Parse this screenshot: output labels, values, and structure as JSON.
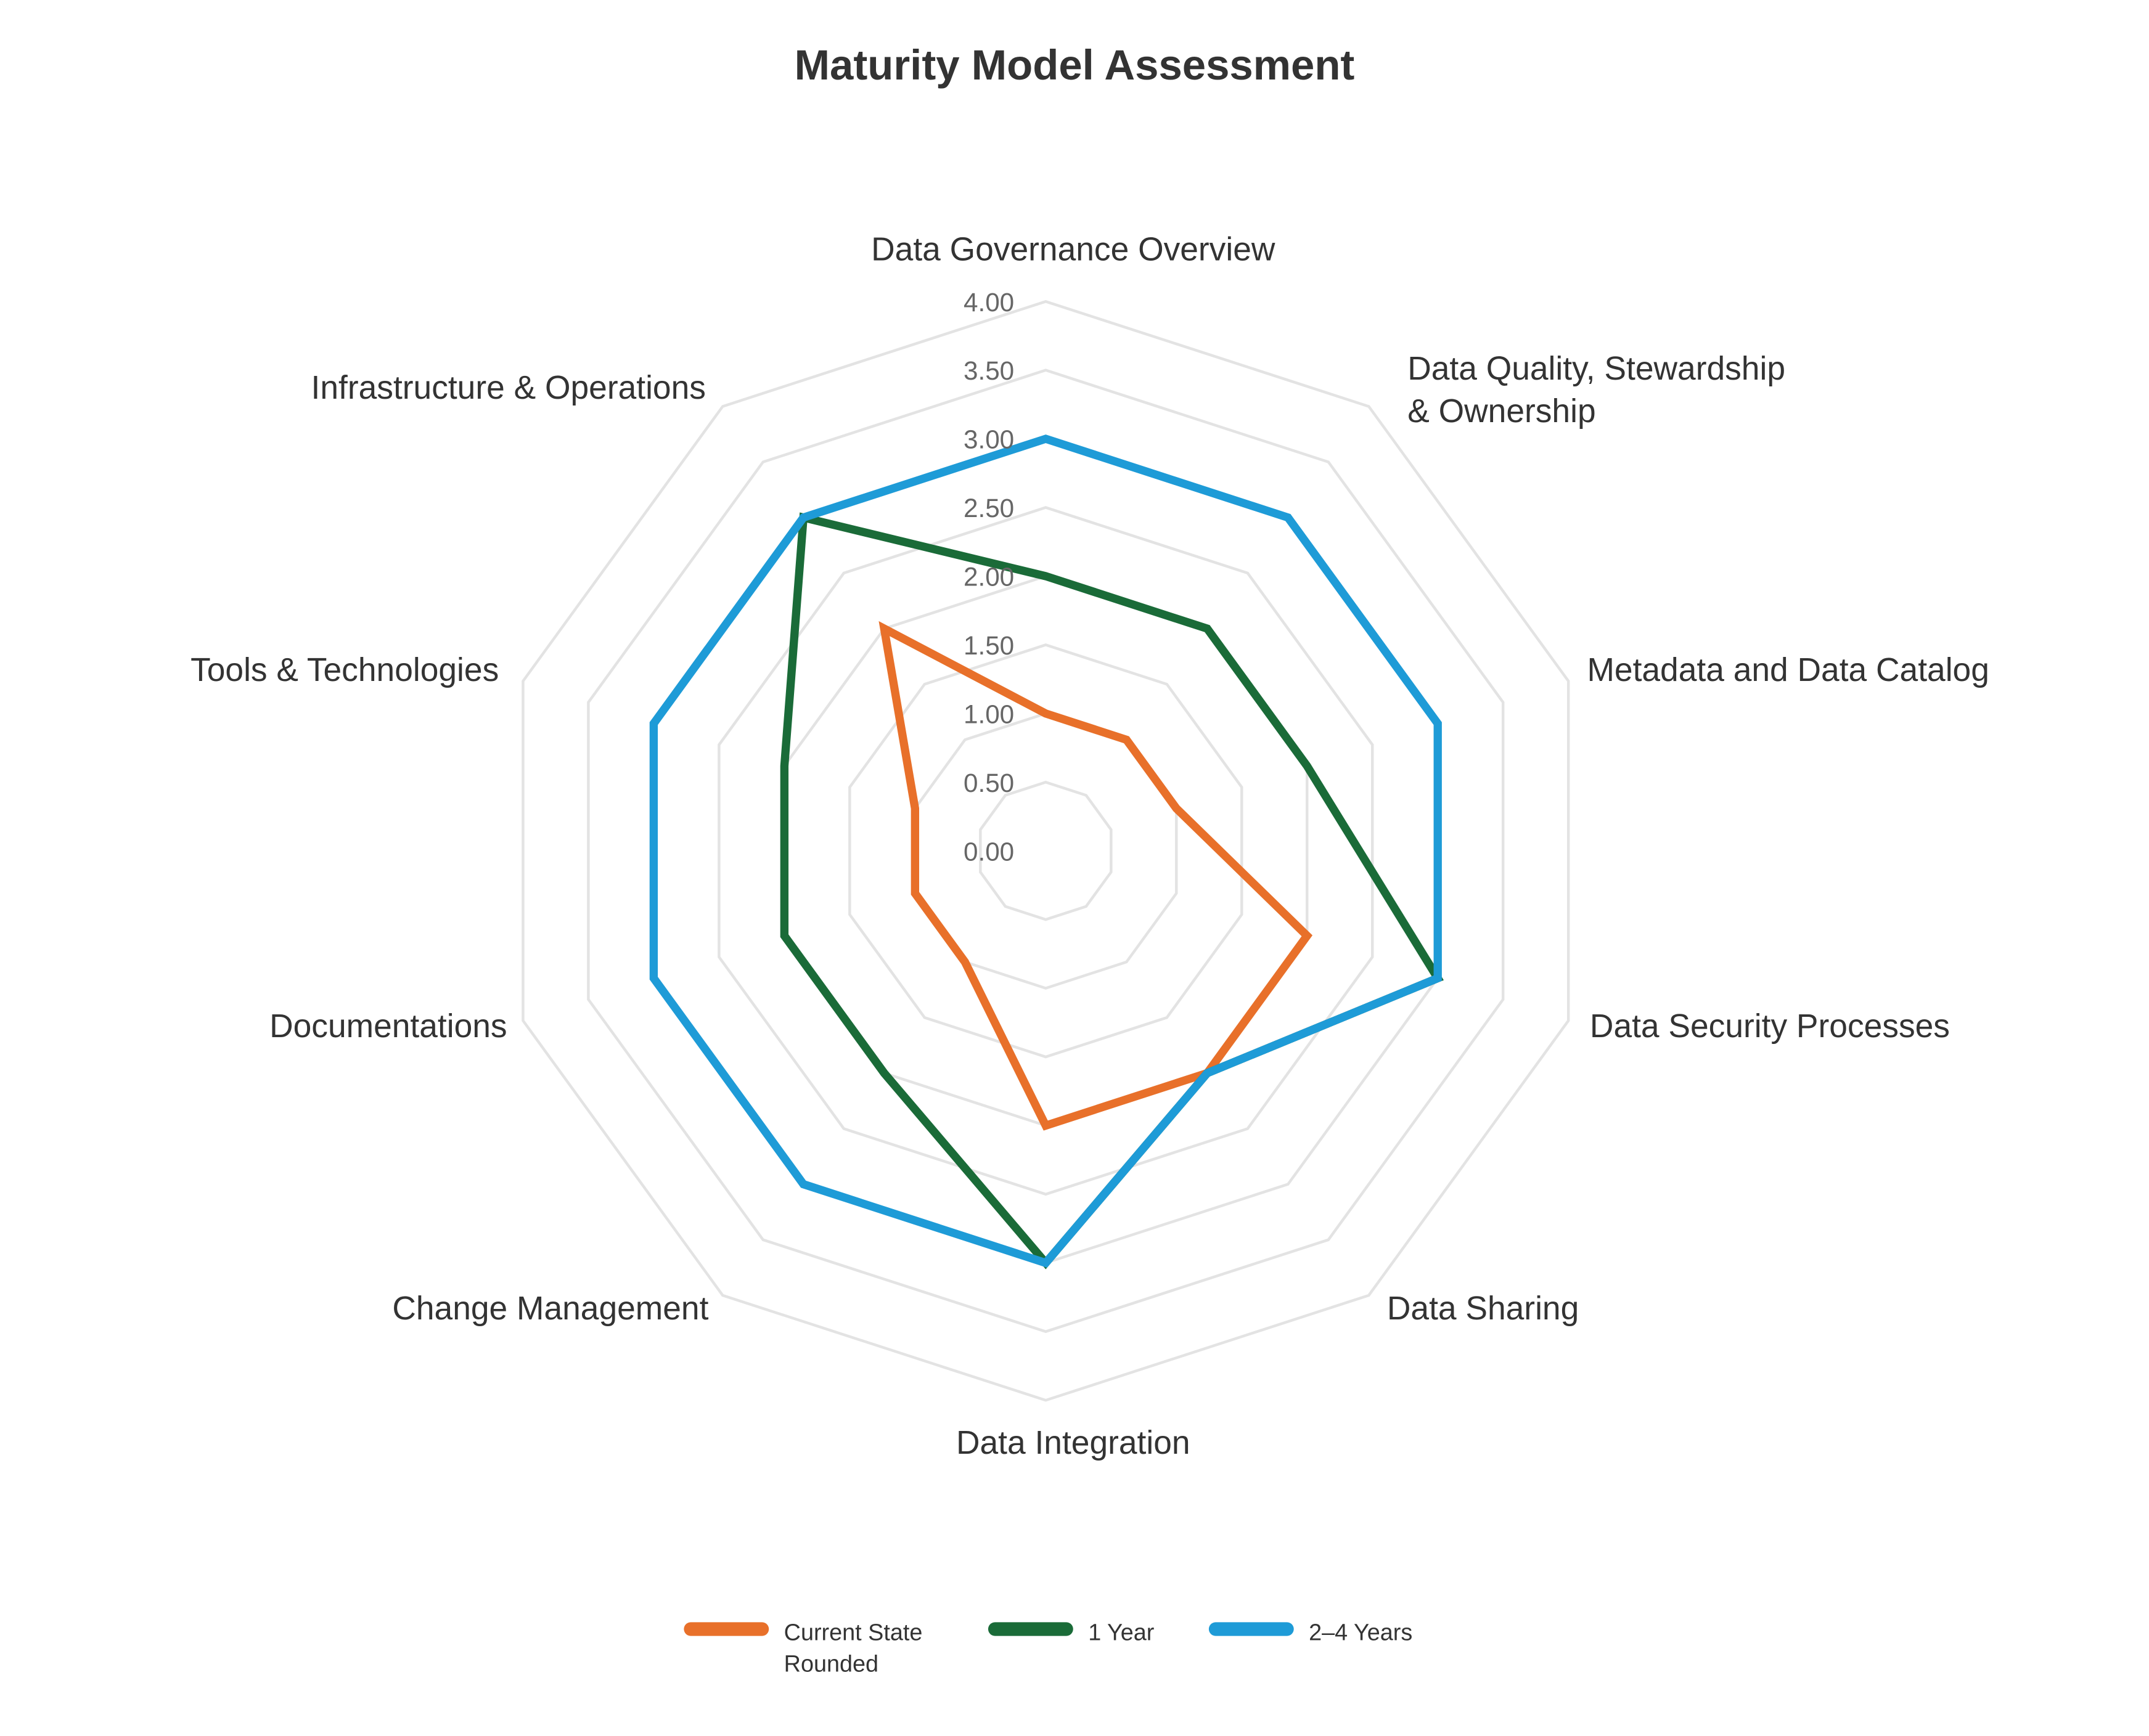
{
  "chart_data": {
    "type": "radar",
    "title": "Maturity Model Assessment",
    "categories": [
      "Data Governance Overview",
      "Data Quality, Stewardship & Ownership",
      "Metadata and Data Catalog",
      "Data Security Processes",
      "Data Sharing",
      "Data Integration",
      "Change Management",
      "Documentations",
      "Tools & Technologies",
      "Infrastructure & Operations"
    ],
    "category_lines": [
      [
        "Data Governance Overview"
      ],
      [
        "Data Quality, Stewardship",
        "& Ownership"
      ],
      [
        "Metadata and Data Catalog"
      ],
      [
        "Data Security Processes"
      ],
      [
        "Data Sharing"
      ],
      [
        "Data Integration"
      ],
      [
        "Change Management"
      ],
      [
        "Documentations"
      ],
      [
        "Tools & Technologies"
      ],
      [
        "Infrastructure & Operations"
      ]
    ],
    "rlim": [
      0,
      4
    ],
    "ticks": [
      "0.00",
      "0.50",
      "1.00",
      "1.50",
      "2.00",
      "2.50",
      "3.00",
      "3.50",
      "4.00"
    ],
    "grid": true,
    "legend_position": "bottom",
    "series": [
      {
        "name": "Current State Rounded",
        "name_lines": [
          "Current State",
          "Rounded"
        ],
        "color": "#E8702A",
        "values": [
          1,
          1,
          1,
          2,
          2,
          2,
          1,
          1,
          1,
          2
        ]
      },
      {
        "name": "1 Year",
        "name_lines": [
          "1 Year"
        ],
        "color": "#1A6B38",
        "values": [
          2,
          2,
          2,
          3,
          2,
          3,
          2,
          2,
          2,
          3
        ]
      },
      {
        "name": "2–4 Years",
        "name_lines": [
          "2–4 Years"
        ],
        "color": "#1E9BD7",
        "values": [
          3,
          3,
          3,
          3,
          2,
          3,
          3,
          3,
          3,
          3
        ]
      }
    ]
  }
}
